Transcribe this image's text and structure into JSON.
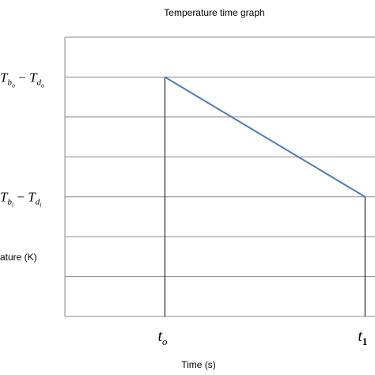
{
  "chart_data": {
    "type": "line",
    "title": "Temperature time graph",
    "xlabel": "Time (s)",
    "ylabel": "ature (K)",
    "grid": true,
    "xticks": [
      {
        "key": "t0",
        "x": 0,
        "base": "t",
        "sub": "o"
      },
      {
        "key": "t1",
        "x": 1,
        "base": "t",
        "sub": "1"
      }
    ],
    "yticks": [
      {
        "key": "high",
        "y": 6,
        "a": "T",
        "a_sub": "b",
        "a_subsub": "o",
        "b": "T",
        "b_sub": "d",
        "b_subsub": "o"
      },
      {
        "key": "low",
        "y": 3,
        "a": "T",
        "a_sub": "b",
        "a_subsub": "i",
        "b": "T",
        "b_sub": "d",
        "b_subsub": "i"
      }
    ],
    "xlim": [
      -0.5,
      1.05
    ],
    "ylim": [
      0,
      7
    ],
    "series": [
      {
        "x": [
          0,
          1
        ],
        "y": [
          6,
          3
        ],
        "color": "#4a7ab7"
      }
    ],
    "drop_lines": [
      {
        "x": 0,
        "y": 6
      },
      {
        "x": 1,
        "y": 3
      }
    ]
  }
}
